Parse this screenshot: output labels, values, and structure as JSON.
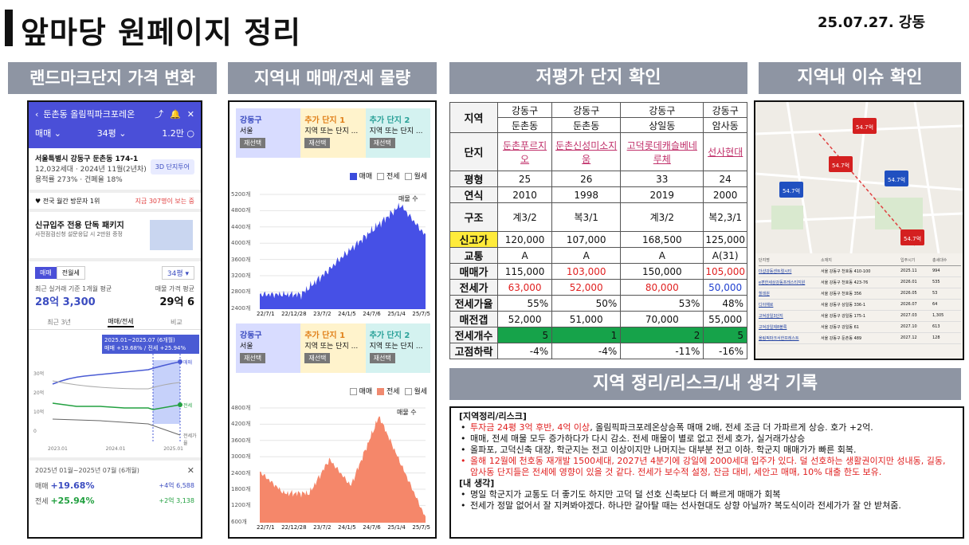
{
  "header": {
    "title": "앞마당 원페이지 정리",
    "date": "25.07.27. 강동"
  },
  "sections": {
    "landmark": "랜드마크단지 가격 변화",
    "volume": "지역내 매매/전세 물량",
    "lowprice": "저평가 단지 확인",
    "issue": "지역내 이슈 확인",
    "notes": "지역 정리/리스크/내 생각 기록"
  },
  "phone": {
    "nav_title": "둔촌동 올림픽파크포레온",
    "filter": {
      "type": "매매",
      "size": "34평",
      "count": "1.2만"
    },
    "address": "서울특별시 강동구 둔촌동 174-1",
    "info1": "12,032세대 · 2024년 11월(2년차)",
    "info2": "용적률 273% · 건폐율 18%",
    "tour_btn": "3D 단지투어",
    "rank": "전국 월간 방문자 1위",
    "rank_right": "지금 307명이 보는 중",
    "ad_title": "신규입주 전용 단독 패키지",
    "ad_sub": "사전점검신청 설문응답 시 2만원 증정",
    "tab_sale": "매매",
    "tab_rent": "전월세",
    "size_select": "34평",
    "recent_label": "최근 실거래 기준 1개월 평균",
    "recent_value": "28억 3,300",
    "ask_label": "매물 가격 평균",
    "ask_value": "29억 6",
    "period_tabs": [
      "최근 3년",
      "매매/전세",
      "비교"
    ],
    "tooltip_l1": "2025.01~2025.07 (6개월)",
    "tooltip_l2": "매매 +19.68% / 전세 +25.94%",
    "y_ticks": [
      "30억",
      "20억",
      "10억",
      "0"
    ],
    "x_ticks": [
      "2023.01",
      "2024.01",
      "2025.01"
    ],
    "series_labels": [
      "매매",
      "전세",
      "전세가율"
    ],
    "summary_title": "2025년 01월~2025년 07월 (6개월)",
    "sale_label": "매매",
    "sale_pct": "+19.68%",
    "sale_amt": "+4억 6,588",
    "jeonse_label": "전세",
    "jeonse_pct": "+25.94%",
    "jeonse_amt": "+2억 3,138"
  },
  "volume": {
    "cols": [
      {
        "name": "강동구",
        "sub": "서울",
        "btn": "재선택"
      },
      {
        "name": "추가 단지 1",
        "sub": "지역 또는 단지 ...",
        "btn": "재선택"
      },
      {
        "name": "추가 단지 2",
        "sub": "지역 또는 단지 ...",
        "btn": "재선택"
      }
    ],
    "legend1": [
      "매매",
      "전세",
      "월세"
    ],
    "legend2": [
      "매매",
      "전세",
      "월세"
    ],
    "chart1_label": "매물 수",
    "chart2_label": "매물 수",
    "x_ticks": [
      "22/7/1",
      "22/12/28",
      "23/7/2",
      "24/1/5",
      "24/7/6",
      "25/1/4",
      "25/7/5"
    ],
    "y1": [
      "5200개",
      "4800개",
      "4400개",
      "4000개",
      "3600개",
      "3200개",
      "2800개",
      "2400개"
    ],
    "y2": [
      "4800개",
      "4200개",
      "3600개",
      "3000개",
      "2400개",
      "1800개",
      "1200개",
      "600개"
    ]
  },
  "table": {
    "region_label": "지역",
    "region": [
      [
        "강동구",
        "둔촌동"
      ],
      [
        "강동구",
        "둔촌동"
      ],
      [
        "강동구",
        "상일동"
      ],
      [
        "강동구",
        "암사동"
      ]
    ],
    "rows": [
      {
        "label": "단지",
        "vals": [
          "둔촌푸르지오",
          "둔촌신성미소지움",
          "고덕롯데캐슬베네루체",
          "선사현대"
        ]
      },
      {
        "label": "평형",
        "vals": [
          "25",
          "26",
          "33",
          "24"
        ]
      },
      {
        "label": "연식",
        "vals": [
          "2010",
          "1998",
          "2019",
          "2000"
        ]
      },
      {
        "label": "구조",
        "vals": [
          "계3/2",
          "복3/1",
          "계3/2",
          "복2,3/1"
        ]
      },
      {
        "label": "신고가",
        "vals": [
          "120,000",
          "107,000",
          "168,500",
          "125,000"
        ]
      },
      {
        "label": "교통",
        "vals": [
          "A",
          "A",
          "A",
          "A(31)"
        ]
      },
      {
        "label": "매매가",
        "vals": [
          "115,000",
          "103,000",
          "150,000",
          "105,000"
        ]
      },
      {
        "label": "전세가",
        "vals": [
          "63,000",
          "52,000",
          "80,000",
          "50,000"
        ]
      },
      {
        "label": "전세가율",
        "vals": [
          "55%",
          "50%",
          "53%",
          "48%"
        ]
      },
      {
        "label": "매전갭",
        "vals": [
          "52,000",
          "51,000",
          "70,000",
          "55,000"
        ]
      },
      {
        "label": "전세개수",
        "vals": [
          "5",
          "1",
          "2",
          "5"
        ]
      },
      {
        "label": "고점하락",
        "vals": [
          "-4%",
          "-4%",
          "-11%",
          "-16%"
        ]
      }
    ]
  },
  "issue_map": {
    "headers": [
      "단지명",
      "소재지",
      "입주시기",
      "총세대수"
    ],
    "rows": [
      [
        "더샵강동센트럴시티",
        "서울 강동구 천호동 410-100",
        "2025.11",
        "994"
      ],
      [
        "e편한세상강동프레스티지원",
        "서울 강동구 천호동 423-76",
        "2026.01",
        "535"
      ],
      [
        "힐데원",
        "서울 강동구 천호동 356",
        "2026.05",
        "53"
      ],
      [
        "디아채로",
        "서울 강동구 상일동 336-1",
        "2026.07",
        "64"
      ],
      [
        "고덕강일3단지",
        "서울 강동구 강일동 175-1",
        "2027.03",
        "1,305"
      ],
      [
        "고덕강일제8블록",
        "서울 강동구 강일동 61",
        "2027.10",
        "613"
      ],
      [
        "올림픽파크서한프레스트",
        "서울 강동구 둔촌동 489",
        "2027.12",
        "128"
      ]
    ],
    "pins": [
      "54.7억",
      "54.7억",
      "54.7억",
      "54.7억",
      "54.7억"
    ]
  },
  "notes": {
    "h1": "[지역정리/리스크]",
    "items1": [
      {
        "t": "투자금 24평 3억 후반, 4억 이상, 올림픽파크포레온상승폭 매매 2배, 전세 조금 더 가파르게 상승. 호가 +2억.",
        "red": "투자금 24평 3억 후반, 4억 이상"
      },
      {
        "t": "매매, 전세 매물 모두 증가하다가 다시 감소. 전세 매물이 별로 없고 전세 호가, 실거래가상승",
        "red": ""
      },
      {
        "t": "올파포, 고덕신축 대장, 학군지는 전고 이상이지만 나머지는 대부분 전고 이하. 학군지 매매가가 빠른 회복.",
        "red": ""
      },
      {
        "t": "올해 12월에 천호동 재개발 1500세대, 2027년 4분기에 강일에 2000세대 입주가 있다. 덜 선호하는 생활권이지만 성내동, 길동, 암사동 단지들은 전세에 영향이 있을 것 같다. 전세가 보수적 설정, 잔금 대비, 세안고 매매, 10% 대출 한도 보유.",
        "red": "all"
      }
    ],
    "h2": "[내 생각]",
    "items2": [
      "명일 학군지가 교통도 더 좋기도 하지만 고덕 덜 선호 신축보다 더 빠르게 매매가 회복",
      "전세가 정말 없어서 잘 지켜봐야겠다. 하나만 갈아탈 때는 선사현대도 상향 아닐까? 복도식이라 전세가가 잘 안 받쳐줌."
    ]
  },
  "chart_data": [
    {
      "type": "area",
      "title": "",
      "series": [
        {
          "name": "매매"
        }
      ],
      "x_ticks": [
        "22/7/1",
        "22/12/28",
        "23/7/2",
        "24/1/5",
        "24/7/6",
        "25/1/4",
        "25/7/5"
      ],
      "ylim": [
        2400,
        5200
      ]
    },
    {
      "type": "area",
      "title": "",
      "series": [
        {
          "name": "전세"
        }
      ],
      "x_ticks": [
        "22/7/1",
        "22/12/28",
        "23/7/2",
        "24/1/5",
        "24/7/6",
        "25/1/4",
        "25/7/5"
      ],
      "ylim": [
        600,
        4800
      ]
    }
  ]
}
